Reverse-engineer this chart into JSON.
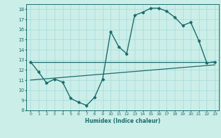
{
  "title": "",
  "xlabel": "Humidex (Indice chaleur)",
  "background_color": "#cceee8",
  "grid_color": "#aadddd",
  "line_color": "#1a6b6b",
  "xlim": [
    -0.5,
    23.5
  ],
  "ylim": [
    8,
    18.5
  ],
  "yticks": [
    8,
    9,
    10,
    11,
    12,
    13,
    14,
    15,
    16,
    17,
    18
  ],
  "xticks": [
    0,
    1,
    2,
    3,
    4,
    5,
    6,
    7,
    8,
    9,
    10,
    11,
    12,
    13,
    14,
    15,
    16,
    17,
    18,
    19,
    20,
    21,
    22,
    23
  ],
  "line1_x": [
    0,
    1,
    2,
    3,
    4,
    5,
    6,
    7,
    8,
    9,
    10,
    11,
    12,
    13,
    14,
    15,
    16,
    17,
    18,
    19,
    20,
    21,
    22,
    23
  ],
  "line1_y": [
    12.8,
    11.8,
    10.7,
    11.1,
    10.8,
    9.2,
    8.8,
    8.5,
    9.3,
    11.1,
    15.8,
    14.3,
    13.6,
    17.4,
    17.7,
    18.1,
    18.1,
    17.8,
    17.2,
    16.4,
    16.7,
    14.9,
    12.7,
    12.8
  ],
  "line2_x": [
    0,
    23
  ],
  "line2_y": [
    12.8,
    12.8
  ],
  "line3_x": [
    0,
    23
  ],
  "line3_y": [
    11.0,
    12.5
  ]
}
